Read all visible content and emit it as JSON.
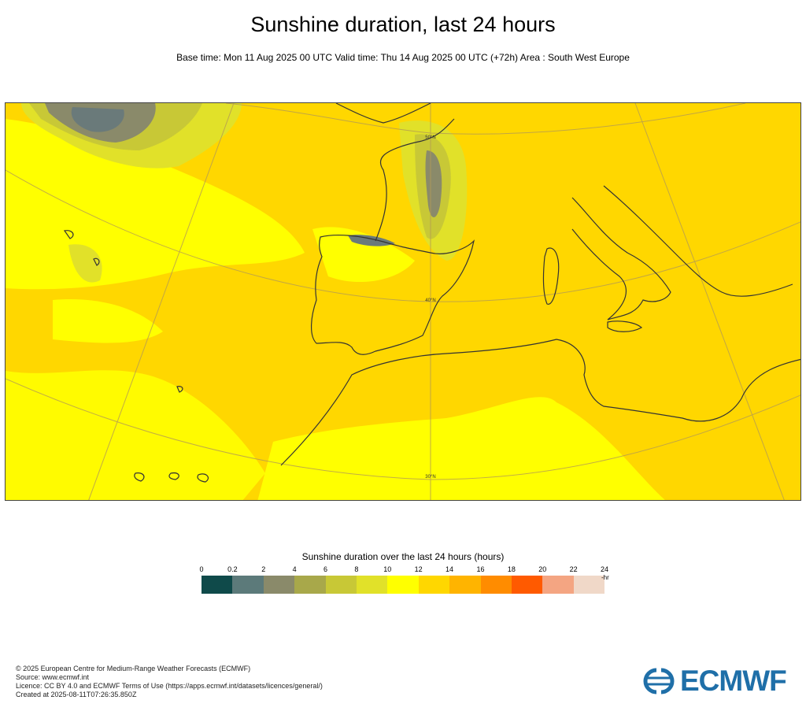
{
  "header": {
    "title": "Sunshine duration, last 24 hours",
    "subtitle": "Base time: Mon 11 Aug 2025 00 UTC Valid time: Thu 14 Aug 2025 00 UTC (+72h) Area : South West Europe"
  },
  "map": {
    "latitude_labels": [
      "50°N",
      "40°N",
      "30°N"
    ],
    "colors": {
      "background_fill": "#ffd700",
      "sunny_band": "#ffff00",
      "cloud_light": "#e1e129",
      "cloud_mid": "#c8c836",
      "cloud_heavy": "#8a8a6a",
      "cloud_darkest": "#6a7a7a",
      "coastline": "#333333",
      "graticule": "#b39a55"
    }
  },
  "legend": {
    "title": "Sunshine duration over the last 24 hours (hours)",
    "unit": "-hr",
    "ticks": [
      "0",
      "0.2",
      "2",
      "4",
      "6",
      "8",
      "10",
      "12",
      "14",
      "16",
      "18",
      "20",
      "22",
      "24"
    ],
    "colors": [
      "#0f4a4a",
      "#5c7a7a",
      "#8a8a6a",
      "#a8a84a",
      "#c8c836",
      "#e1e129",
      "#ffff00",
      "#ffd700",
      "#ffb400",
      "#ff8c00",
      "#ff5a00",
      "#f4a582",
      "#f0d8c8"
    ]
  },
  "footer": {
    "lines": [
      "© 2025 European Centre for Medium-Range Weather Forecasts (ECMWF)",
      "Source: www.ecmwf.int",
      "Licence: CC BY 4.0 and ECMWF Terms of Use (https://apps.ecmwf.int/datasets/licences/general/)",
      "Created at 2025-08-11T07:26:35.850Z"
    ]
  },
  "logo": {
    "text": "ECMWF",
    "color": "#1f6fa8"
  }
}
